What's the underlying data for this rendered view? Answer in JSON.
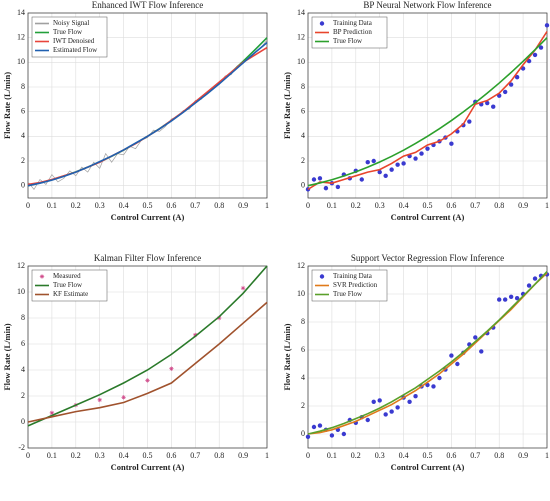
{
  "chart_data": [
    {
      "type": "line",
      "title": "Enhanced IWT Flow Inference",
      "xlabel": "Control Current (A)",
      "ylabel": "Flow Rate (L/min)",
      "xlim": [
        0,
        1
      ],
      "xticks": [
        0,
        0.1,
        0.2,
        0.3,
        0.4,
        0.5,
        0.6,
        0.7,
        0.8,
        0.9,
        1
      ],
      "ylim": [
        -1,
        14
      ],
      "yticks": [
        0,
        2,
        4,
        6,
        8,
        10,
        12,
        14
      ],
      "grid": true,
      "legend": "upper left",
      "series": [
        {
          "name": "Noisy Signal",
          "color": "#a0a0a0",
          "style": "line",
          "x": [
            0,
            0.025,
            0.05,
            0.075,
            0.1,
            0.125,
            0.15,
            0.175,
            0.2,
            0.225,
            0.25,
            0.275,
            0.3,
            0.325,
            0.35,
            0.375,
            0.4,
            0.425,
            0.45,
            0.475,
            0.5,
            0.525,
            0.55,
            0.575,
            0.6,
            0.625,
            0.65,
            0.675,
            0.7,
            0.725,
            0.75,
            0.775,
            0.8,
            0.825,
            0.85,
            0.875,
            0.9,
            0.925,
            0.95,
            0.975,
            1
          ],
          "values": [
            0.3,
            -0.3,
            0.5,
            0.1,
            0.9,
            0.3,
            0.6,
            1.2,
            0.8,
            1.5,
            1.1,
            1.9,
            1.4,
            2.6,
            1.9,
            2.6,
            2.5,
            3.2,
            3.0,
            3.7,
            3.9,
            4.5,
            4.4,
            4.8,
            5.4,
            5.6,
            6.1,
            6.2,
            6.9,
            7.0,
            7.6,
            8.0,
            8.2,
            8.9,
            9.0,
            9.7,
            9.9,
            10.4,
            10.8,
            11.2,
            11.8
          ]
        },
        {
          "name": "True Flow",
          "color": "#22a03a",
          "style": "line",
          "x": [
            0,
            0.05,
            0.1,
            0.15,
            0.2,
            0.25,
            0.3,
            0.35,
            0.4,
            0.45,
            0.5,
            0.55,
            0.6,
            0.65,
            0.7,
            0.75,
            0.8,
            0.85,
            0.9,
            0.95,
            1
          ],
          "values": [
            0,
            0.22,
            0.48,
            0.78,
            1.12,
            1.5,
            1.92,
            2.38,
            2.88,
            3.42,
            4,
            4.62,
            5.28,
            5.98,
            6.72,
            7.5,
            8.32,
            9.18,
            10.08,
            11.02,
            12
          ]
        },
        {
          "name": "IWT Denoised",
          "color": "#e8453c",
          "style": "line",
          "x": [
            0,
            0.05,
            0.1,
            0.15,
            0.2,
            0.25,
            0.3,
            0.35,
            0.4,
            0.45,
            0.5,
            0.55,
            0.6,
            0.65,
            0.7,
            0.75,
            0.8,
            0.85,
            0.9,
            0.95,
            1
          ],
          "values": [
            0.1,
            0.25,
            0.5,
            0.8,
            1.1,
            1.5,
            1.9,
            2.4,
            2.9,
            3.4,
            4,
            4.6,
            5.3,
            6,
            6.8,
            7.6,
            8.4,
            9.2,
            10,
            10.6,
            11.2
          ]
        },
        {
          "name": "Estimated Flow",
          "color": "#2060b0",
          "style": "line",
          "x": [
            0,
            0.05,
            0.1,
            0.15,
            0.2,
            0.25,
            0.3,
            0.35,
            0.4,
            0.45,
            0.5,
            0.55,
            0.6,
            0.65,
            0.7,
            0.75,
            0.8,
            0.85,
            0.9,
            0.95,
            1
          ],
          "values": [
            0,
            0.2,
            0.45,
            0.75,
            1.1,
            1.5,
            1.95,
            2.4,
            2.9,
            3.45,
            4,
            4.6,
            5.25,
            5.95,
            6.7,
            7.45,
            8.25,
            9.1,
            9.95,
            10.8,
            11.6
          ]
        }
      ]
    },
    {
      "type": "line",
      "title": "BP Neural Network Flow Inference",
      "xlabel": "Control Current (A)",
      "ylabel": "Flow Rate (L/min)",
      "xlim": [
        0,
        1
      ],
      "xticks": [
        0,
        0.1,
        0.2,
        0.3,
        0.4,
        0.5,
        0.6,
        0.7,
        0.8,
        0.9,
        1
      ],
      "ylim": [
        -1,
        14
      ],
      "yticks": [
        0,
        2,
        4,
        6,
        8,
        10,
        12,
        14
      ],
      "grid": true,
      "legend": "upper left",
      "series": [
        {
          "name": "Training Data",
          "color": "#3a3ad0",
          "style": "dot",
          "x": [
            0,
            0.025,
            0.05,
            0.075,
            0.1,
            0.125,
            0.15,
            0.175,
            0.2,
            0.225,
            0.25,
            0.275,
            0.3,
            0.325,
            0.35,
            0.375,
            0.4,
            0.425,
            0.45,
            0.475,
            0.5,
            0.525,
            0.55,
            0.575,
            0.6,
            0.625,
            0.65,
            0.675,
            0.7,
            0.725,
            0.75,
            0.775,
            0.8,
            0.825,
            0.85,
            0.875,
            0.9,
            0.925,
            0.95,
            0.975,
            1
          ],
          "values": [
            -0.3,
            0.5,
            0.6,
            -0.2,
            0.2,
            -0.1,
            0.9,
            0.6,
            1.2,
            0.5,
            1.9,
            2.0,
            1.1,
            0.8,
            1.3,
            1.7,
            1.8,
            2.4,
            2.2,
            2.6,
            3.0,
            3.3,
            3.6,
            3.9,
            3.4,
            4.4,
            4.9,
            5.2,
            6.8,
            6.6,
            6.7,
            6.4,
            7.3,
            7.6,
            8.2,
            8.8,
            9.5,
            10.1,
            10.6,
            11.2,
            13.0
          ]
        },
        {
          "name": "BP Prediction",
          "color": "#e8452c",
          "style": "line",
          "x": [
            0,
            0.05,
            0.1,
            0.15,
            0.2,
            0.25,
            0.3,
            0.35,
            0.4,
            0.45,
            0.5,
            0.55,
            0.6,
            0.65,
            0.7,
            0.75,
            0.8,
            0.85,
            0.9,
            0.95,
            1
          ],
          "values": [
            -0.3,
            0.3,
            0.2,
            0.5,
            0.8,
            1.1,
            1.3,
            1.8,
            2.4,
            2.7,
            3.3,
            3.6,
            4.2,
            5.0,
            6.6,
            6.9,
            7.5,
            8.5,
            9.8,
            11.0,
            12.5
          ]
        },
        {
          "name": "True Flow",
          "color": "#2ca02c",
          "style": "line",
          "x": [
            0,
            0.05,
            0.1,
            0.15,
            0.2,
            0.25,
            0.3,
            0.35,
            0.4,
            0.45,
            0.5,
            0.55,
            0.6,
            0.65,
            0.7,
            0.75,
            0.8,
            0.85,
            0.9,
            0.95,
            1
          ],
          "values": [
            0,
            0.22,
            0.48,
            0.78,
            1.12,
            1.5,
            1.92,
            2.38,
            2.88,
            3.42,
            4,
            4.62,
            5.28,
            5.98,
            6.72,
            7.5,
            8.32,
            9.18,
            10.08,
            11.02,
            12
          ]
        }
      ]
    },
    {
      "type": "line",
      "title": "Kalman Filter Flow Inference",
      "xlabel": "Control Current (A)",
      "ylabel": "Flow Rate (L/min)",
      "xlim": [
        0,
        1
      ],
      "xticks": [
        0,
        0.1,
        0.2,
        0.3,
        0.4,
        0.5,
        0.6,
        0.7,
        0.8,
        0.9,
        1
      ],
      "ylim": [
        -2,
        12
      ],
      "yticks": [
        -2,
        0,
        2,
        4,
        6,
        8,
        10,
        12
      ],
      "grid": true,
      "legend": "upper left",
      "series": [
        {
          "name": "Measured",
          "color": "#d04a8a",
          "style": "star",
          "x": [
            0.1,
            0.2,
            0.3,
            0.4,
            0.5,
            0.6,
            0.7,
            0.8,
            0.9
          ],
          "values": [
            0.7,
            1.3,
            1.7,
            1.9,
            3.2,
            4.1,
            6.7,
            8.0,
            10.3
          ]
        },
        {
          "name": "True Flow",
          "color": "#2a7a2a",
          "style": "line",
          "x": [
            0,
            0.1,
            0.2,
            0.3,
            0.4,
            0.5,
            0.6,
            0.7,
            0.8,
            0.9,
            1
          ],
          "values": [
            -0.3,
            0.5,
            1.3,
            2.1,
            3.0,
            4.0,
            5.2,
            6.6,
            8.1,
            9.9,
            12.0
          ]
        },
        {
          "name": "KF Estimate",
          "color": "#a0522d",
          "style": "line",
          "x": [
            0,
            0.1,
            0.2,
            0.3,
            0.4,
            0.5,
            0.6,
            0.7,
            0.8,
            0.9,
            1
          ],
          "values": [
            0,
            0.4,
            0.8,
            1.1,
            1.5,
            2.2,
            3.0,
            4.5,
            6.0,
            7.6,
            9.2
          ]
        }
      ]
    },
    {
      "type": "line",
      "title": "Support Vector Regression Flow Inference",
      "xlabel": "Control Current (A)",
      "ylabel": "Flow Rate (L/min)",
      "xlim": [
        0,
        1
      ],
      "xticks": [
        0,
        0.1,
        0.2,
        0.3,
        0.4,
        0.5,
        0.6,
        0.7,
        0.8,
        0.9,
        1
      ],
      "ylim": [
        -1,
        12
      ],
      "yticks": [
        0,
        2,
        4,
        6,
        8,
        10,
        12
      ],
      "grid": true,
      "legend": "upper left",
      "series": [
        {
          "name": "Training Data",
          "color": "#3a3ad0",
          "style": "dot",
          "x": [
            0,
            0.025,
            0.05,
            0.075,
            0.1,
            0.125,
            0.15,
            0.175,
            0.2,
            0.225,
            0.25,
            0.275,
            0.3,
            0.325,
            0.35,
            0.375,
            0.4,
            0.425,
            0.45,
            0.475,
            0.5,
            0.525,
            0.55,
            0.575,
            0.6,
            0.625,
            0.65,
            0.675,
            0.7,
            0.725,
            0.75,
            0.775,
            0.8,
            0.825,
            0.85,
            0.875,
            0.9,
            0.925,
            0.95,
            0.975,
            1
          ],
          "values": [
            -0.2,
            0.5,
            0.6,
            0.3,
            -0.1,
            0.3,
            0.0,
            1.0,
            0.8,
            1.2,
            1.0,
            2.3,
            2.4,
            1.4,
            1.6,
            1.9,
            2.6,
            2.3,
            2.7,
            3.4,
            3.5,
            3.4,
            4.0,
            4.6,
            5.6,
            5.0,
            5.8,
            6.4,
            6.9,
            5.9,
            7.2,
            7.6,
            9.6,
            9.6,
            9.8,
            9.7,
            10.0,
            10.6,
            11.1,
            11.3,
            11.4
          ]
        },
        {
          "name": "SVR Prediction",
          "color": "#e07a1a",
          "style": "line",
          "x": [
            0,
            0.05,
            0.1,
            0.15,
            0.2,
            0.25,
            0.3,
            0.35,
            0.4,
            0.45,
            0.5,
            0.55,
            0.6,
            0.65,
            0.7,
            0.75,
            0.8,
            0.85,
            0.9,
            0.95,
            1
          ],
          "values": [
            0.0,
            0.1,
            0.3,
            0.6,
            0.9,
            1.3,
            1.7,
            2.1,
            2.6,
            3.1,
            3.7,
            4.3,
            5.0,
            5.7,
            6.5,
            7.3,
            8.1,
            8.9,
            9.8,
            10.7,
            11.5
          ]
        },
        {
          "name": "True Flow",
          "color": "#5aa02a",
          "style": "line",
          "x": [
            0,
            0.05,
            0.1,
            0.15,
            0.2,
            0.25,
            0.3,
            0.35,
            0.4,
            0.45,
            0.5,
            0.55,
            0.6,
            0.65,
            0.7,
            0.75,
            0.8,
            0.85,
            0.9,
            0.95,
            1
          ],
          "values": [
            0,
            0.2,
            0.45,
            0.75,
            1.1,
            1.45,
            1.85,
            2.3,
            2.8,
            3.3,
            3.9,
            4.5,
            5.15,
            5.85,
            6.6,
            7.35,
            8.15,
            9.0,
            9.85,
            10.7,
            11.6
          ]
        }
      ]
    }
  ]
}
